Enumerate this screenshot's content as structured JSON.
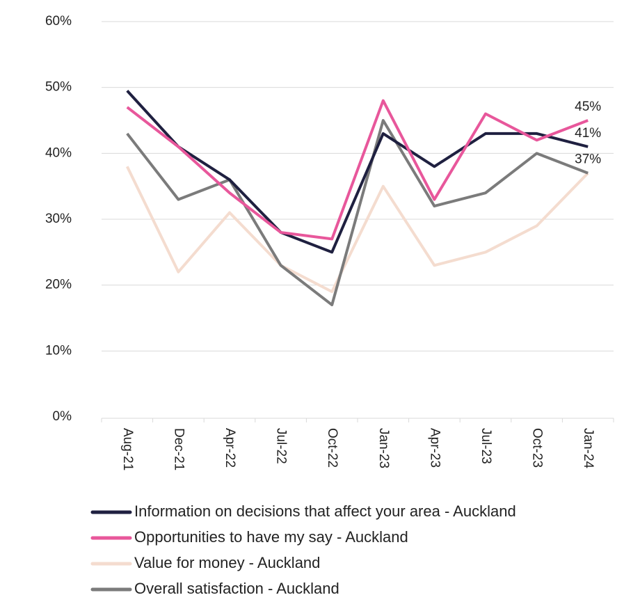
{
  "chart_data": {
    "type": "line",
    "categories": [
      "Aug-21",
      "Dec-21",
      "Apr-22",
      "Jul-22",
      "Oct-22",
      "Jan-23",
      "Apr-23",
      "Jul-23",
      "Oct-23",
      "Jan-24"
    ],
    "series": [
      {
        "name": "Information on decisions that affect your area - Auckland",
        "color": "#1f2040",
        "values": [
          49.5,
          41,
          36,
          28,
          25,
          43,
          38,
          43,
          43,
          41
        ],
        "value_labels": [
          null,
          null,
          null,
          null,
          null,
          null,
          null,
          null,
          null,
          "41%"
        ]
      },
      {
        "name": "Opportunities to have my say - Auckland",
        "color": "#e8579b",
        "values": [
          47,
          41,
          34,
          28,
          27,
          48,
          33,
          46,
          42,
          45
        ],
        "value_labels": [
          null,
          null,
          null,
          null,
          null,
          null,
          null,
          null,
          null,
          "45%"
        ]
      },
      {
        "name": "Value for money - Auckland",
        "color": "#f4dccf",
        "values": [
          38,
          22,
          31,
          23,
          19,
          35,
          23,
          25,
          29,
          37
        ]
      },
      {
        "name": "Overall satisfaction - Auckland",
        "color": "#7b7b7b",
        "values": [
          43,
          33,
          36,
          23,
          17,
          45,
          32,
          34,
          40,
          37
        ],
        "value_labels": [
          null,
          null,
          null,
          null,
          null,
          null,
          null,
          null,
          null,
          "37%"
        ]
      }
    ],
    "ylim": [
      0,
      60
    ],
    "yticks": [
      {
        "value": 0,
        "label": "0%"
      },
      {
        "value": 10,
        "label": "10%"
      },
      {
        "value": 20,
        "label": "20%"
      },
      {
        "value": 30,
        "label": "30%"
      },
      {
        "value": 40,
        "label": "40%"
      },
      {
        "value": 50,
        "label": "50%"
      },
      {
        "value": 60,
        "label": "60%"
      }
    ],
    "grid": true
  }
}
